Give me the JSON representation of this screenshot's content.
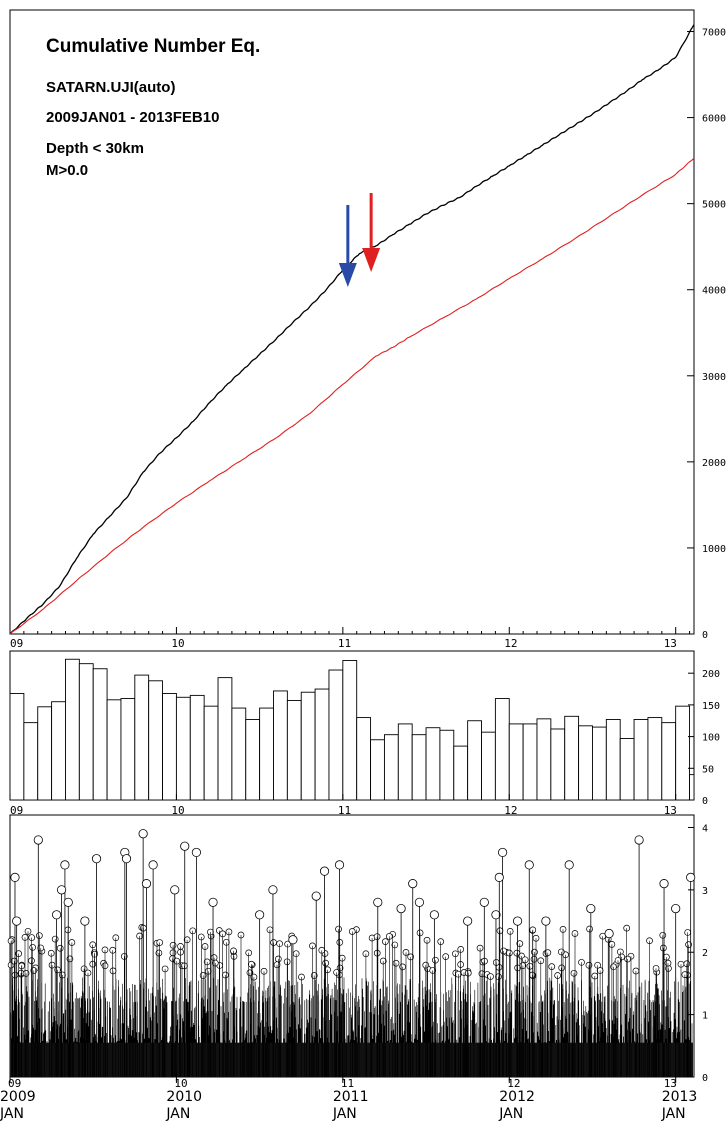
{
  "chart_data": [
    {
      "type": "line",
      "title": "Cumulative Number Eq.",
      "info_lines": [
        "SATARN.UJI(auto)",
        "2009JAN01 - 2013FEB10",
        "Depth < 30km",
        "M>0.0"
      ],
      "x_tick_labels": [
        "09",
        "10",
        "11",
        "12",
        "13"
      ],
      "y_tick_labels": [
        "0",
        "1000",
        "2000",
        "3000",
        "4000",
        "5000",
        "6000",
        "7000"
      ],
      "xlim": [
        2009.0,
        2013.11
      ],
      "ylim": [
        0,
        7250
      ],
      "series": [
        {
          "color": "#000000",
          "x": [
            2009.0,
            2009.1,
            2009.2,
            2009.3,
            2009.4,
            2009.5,
            2009.6,
            2009.7,
            2009.8,
            2009.9,
            2010.0,
            2010.1,
            2010.2,
            2010.3,
            2010.4,
            2010.5,
            2010.6,
            2010.7,
            2010.8,
            2010.9,
            2011.0,
            2011.1,
            2011.2,
            2011.3,
            2011.4,
            2011.5,
            2011.6,
            2011.7,
            2011.8,
            2011.9,
            2012.0,
            2012.1,
            2012.2,
            2012.3,
            2012.4,
            2012.5,
            2012.6,
            2012.7,
            2012.8,
            2012.9,
            2013.0,
            2013.11
          ],
          "values": [
            0,
            180,
            350,
            560,
            880,
            1160,
            1370,
            1580,
            1880,
            2100,
            2280,
            2470,
            2690,
            2890,
            3070,
            3250,
            3430,
            3620,
            3800,
            4000,
            4230,
            4420,
            4510,
            4640,
            4760,
            4880,
            4980,
            5070,
            5200,
            5320,
            5440,
            5560,
            5680,
            5800,
            5920,
            6040,
            6170,
            6300,
            6440,
            6560,
            6700,
            7080
          ]
        },
        {
          "color": "#e02020",
          "x": [
            2009.0,
            2009.2,
            2009.4,
            2009.6,
            2009.8,
            2010.0,
            2010.2,
            2010.4,
            2010.6,
            2010.8,
            2011.0,
            2011.2,
            2011.3,
            2011.4,
            2011.6,
            2011.8,
            2012.0,
            2012.2,
            2012.4,
            2012.6,
            2012.8,
            2013.0,
            2013.11
          ],
          "values": [
            0,
            290,
            620,
            940,
            1240,
            1520,
            1780,
            2030,
            2280,
            2560,
            2900,
            3230,
            3330,
            3450,
            3670,
            3890,
            4130,
            4360,
            4600,
            4850,
            5100,
            5340,
            5530
          ]
        }
      ],
      "annotations": [
        {
          "type": "arrow",
          "color": "#2a4aa8",
          "x": 2011.03
        },
        {
          "type": "arrow",
          "color": "#e02020",
          "x": 2011.17
        }
      ]
    },
    {
      "type": "bar",
      "x_tick_labels": [
        "09",
        "10",
        "11",
        "12",
        "13"
      ],
      "y_tick_labels": [
        "0",
        "50",
        "100",
        "150",
        "200"
      ],
      "xlim": [
        2009.0,
        2013.11
      ],
      "ylim": [
        0,
        235
      ],
      "bin_start": 2009.0,
      "bin_width_years": 0.08333,
      "values": [
        168,
        122,
        147,
        155,
        222,
        215,
        207,
        158,
        160,
        197,
        188,
        168,
        162,
        165,
        148,
        193,
        145,
        127,
        145,
        172,
        157,
        170,
        175,
        205,
        220,
        130,
        95,
        103,
        120,
        103,
        114,
        110,
        85,
        125,
        107,
        160,
        120,
        120,
        128,
        112,
        132,
        117,
        115,
        127,
        97,
        127,
        130,
        122,
        148,
        40
      ]
    },
    {
      "type": "bar",
      "subtype": "magnitude-time",
      "x_tick_labels": [
        "09",
        "10",
        "11",
        "12",
        "13"
      ],
      "x_year_labels": [
        "2009",
        "2010",
        "2011",
        "2012",
        "2013"
      ],
      "x_month_labels": [
        "JAN",
        "JAN",
        "JAN",
        "JAN",
        "JAN"
      ],
      "y_tick_labels": [
        "0",
        "1",
        "2",
        "3",
        "4"
      ],
      "xlim": [
        2009.0,
        2013.11
      ],
      "ylim": [
        0,
        4.2
      ],
      "marker_threshold": 1.6,
      "large_events": [
        {
          "x": 2009.03,
          "m": 3.2
        },
        {
          "x": 2009.04,
          "m": 2.5
        },
        {
          "x": 2009.17,
          "m": 3.8
        },
        {
          "x": 2009.28,
          "m": 2.6
        },
        {
          "x": 2009.33,
          "m": 3.4
        },
        {
          "x": 2009.31,
          "m": 3.0
        },
        {
          "x": 2009.35,
          "m": 2.8
        },
        {
          "x": 2009.45,
          "m": 2.5
        },
        {
          "x": 2009.52,
          "m": 3.5
        },
        {
          "x": 2009.69,
          "m": 3.6
        },
        {
          "x": 2009.7,
          "m": 3.5
        },
        {
          "x": 2009.8,
          "m": 3.9
        },
        {
          "x": 2009.82,
          "m": 3.1
        },
        {
          "x": 2009.86,
          "m": 3.4
        },
        {
          "x": 2009.99,
          "m": 3.0
        },
        {
          "x": 2010.05,
          "m": 3.7
        },
        {
          "x": 2010.12,
          "m": 3.6
        },
        {
          "x": 2010.22,
          "m": 2.8
        },
        {
          "x": 2010.5,
          "m": 2.6
        },
        {
          "x": 2010.58,
          "m": 3.0
        },
        {
          "x": 2010.7,
          "m": 2.2
        },
        {
          "x": 2010.84,
          "m": 2.9
        },
        {
          "x": 2010.89,
          "m": 3.3
        },
        {
          "x": 2010.98,
          "m": 3.4
        },
        {
          "x": 2011.21,
          "m": 2.8
        },
        {
          "x": 2011.35,
          "m": 2.7
        },
        {
          "x": 2011.42,
          "m": 3.1
        },
        {
          "x": 2011.46,
          "m": 2.8
        },
        {
          "x": 2011.55,
          "m": 2.6
        },
        {
          "x": 2011.75,
          "m": 2.5
        },
        {
          "x": 2011.85,
          "m": 2.8
        },
        {
          "x": 2011.92,
          "m": 2.6
        },
        {
          "x": 2011.96,
          "m": 3.6
        },
        {
          "x": 2011.94,
          "m": 3.2
        },
        {
          "x": 2012.05,
          "m": 2.5
        },
        {
          "x": 2012.12,
          "m": 3.4
        },
        {
          "x": 2012.22,
          "m": 2.5
        },
        {
          "x": 2012.36,
          "m": 3.4
        },
        {
          "x": 2012.49,
          "m": 2.7
        },
        {
          "x": 2012.6,
          "m": 2.3
        },
        {
          "x": 2012.78,
          "m": 3.8
        },
        {
          "x": 2012.93,
          "m": 3.1
        },
        {
          "x": 2013.0,
          "m": 2.7
        },
        {
          "x": 2013.09,
          "m": 3.2
        }
      ]
    }
  ]
}
